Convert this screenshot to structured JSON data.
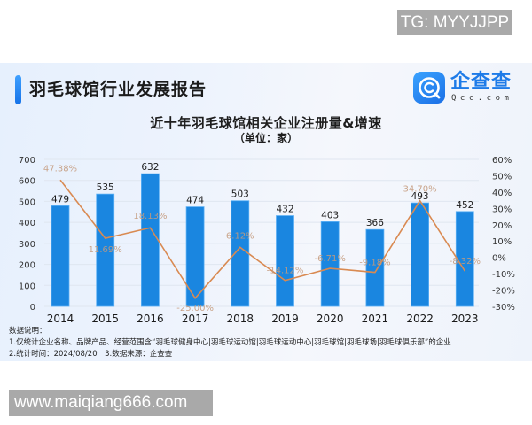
{
  "watermarks": {
    "top_right": "TG: MYYJJPP",
    "bottom_left": "www.maiqiang666.com"
  },
  "header": {
    "title": "羽毛球馆行业发展报告",
    "logo": {
      "name": "企查查",
      "domain": "Qcc.com",
      "icon": "qcc-logo-icon"
    }
  },
  "colors": {
    "bar": "#1a86e0",
    "bar_edge": "#5bb0f5",
    "line": "#d98a52",
    "line_label": "#c49a7c",
    "accent": "#1f7be8"
  },
  "chart_data": {
    "type": "bar",
    "title": "近十年羽毛球馆相关企业注册量&增速",
    "subtitle": "（单位：家）",
    "xlabel": "",
    "ylabel": "",
    "categories": [
      "2014",
      "2015",
      "2016",
      "2017",
      "2018",
      "2019",
      "2020",
      "2021",
      "2022",
      "2023"
    ],
    "series": [
      {
        "name": "注册量",
        "type": "bar",
        "axis": "left",
        "values": [
          479,
          535,
          632,
          474,
          503,
          432,
          403,
          366,
          493,
          452
        ],
        "labels": [
          "479",
          "535",
          "632",
          "474",
          "503",
          "432",
          "403",
          "366",
          "493",
          "452"
        ]
      },
      {
        "name": "增速",
        "type": "line",
        "axis": "right",
        "values": [
          47.38,
          11.69,
          18.13,
          -25.0,
          6.12,
          -14.12,
          -6.71,
          -9.18,
          34.7,
          -8.32
        ],
        "labels": [
          "47.38%",
          "11.69%",
          "18.13%",
          "-25.00%",
          "6.12%",
          "-14.12%",
          "-6.71%",
          "-9.18%",
          "34.70%",
          "-8.32%"
        ]
      }
    ],
    "ylim": [
      0,
      700
    ],
    "y_ticks": [
      "0",
      "100",
      "200",
      "300",
      "400",
      "500",
      "600",
      "700"
    ],
    "y2lim": [
      -30,
      60
    ],
    "y2_ticks": [
      "-30%",
      "-20%",
      "-10%",
      "0%",
      "10%",
      "20%",
      "30%",
      "40%",
      "50%",
      "60%"
    ],
    "grid": true,
    "legend": "none"
  },
  "notes": {
    "heading": "数据说明：",
    "line1": "1.仅统计企业名称、品牌产品、经营范围含“羽毛球健身中心|羽毛球运动馆|羽毛球运动中心|羽毛球馆|羽毛球场|羽毛球俱乐部”的企业",
    "line2": "2.统计时间：2024/08/20　3.数据来源：企查查"
  }
}
